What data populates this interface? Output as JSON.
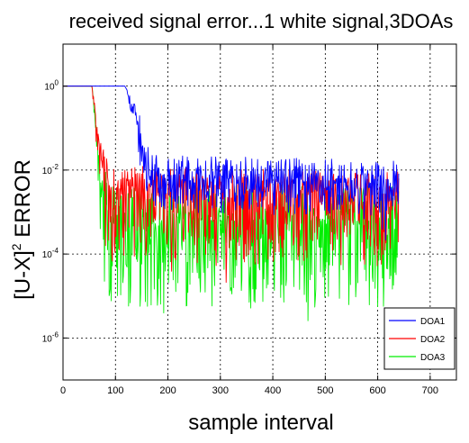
{
  "chart_data": {
    "type": "line",
    "title": "received signal error...1 white signal,3DOAs",
    "xlabel": "sample interval",
    "ylabel_main": "[U-X]",
    "ylabel_sup": "2",
    "ylabel_tail": " ERROR",
    "xlim": [
      0,
      750
    ],
    "ylim": [
      1e-07,
      10
    ],
    "yscale": "log",
    "grid": true,
    "legend_position": "bottom-right",
    "x_ticks": [
      "0",
      "100",
      "200",
      "300",
      "400",
      "500",
      "600",
      "700"
    ],
    "x_tick_values": [
      0,
      100,
      200,
      300,
      400,
      500,
      600,
      700
    ],
    "y_tick_values": [
      1,
      0.01,
      0.0001,
      1e-06
    ],
    "y_ticks": [
      {
        "base": "10",
        "exp": "0"
      },
      {
        "base": "10",
        "exp": "-2"
      },
      {
        "base": "10",
        "exp": "-4"
      },
      {
        "base": "10",
        "exp": "-6"
      }
    ],
    "n_samples": 640,
    "series": [
      {
        "name": "DOA1",
        "color": "#0000ff",
        "profile": [
          [
            0,
            1
          ],
          [
            118,
            1
          ],
          [
            140,
            0.2
          ],
          [
            160,
            0.02
          ],
          [
            175,
            0.008
          ],
          [
            640,
            0.006
          ]
        ],
        "noise_up_dec": 0.45,
        "noise_down_dec": 0.9,
        "seed": 11
      },
      {
        "name": "DOA2",
        "color": "#ff0000",
        "profile": [
          [
            0,
            1
          ],
          [
            55,
            1
          ],
          [
            65,
            0.1
          ],
          [
            75,
            0.012
          ],
          [
            90,
            0.004
          ],
          [
            640,
            0.003
          ]
        ],
        "noise_up_dec": 0.5,
        "noise_down_dec": 1.8,
        "seed": 23
      },
      {
        "name": "DOA3",
        "color": "#00ee00",
        "profile": [
          [
            0,
            1
          ],
          [
            55,
            1
          ],
          [
            65,
            0.08
          ],
          [
            75,
            0.003
          ],
          [
            90,
            0.0008
          ],
          [
            640,
            0.0008
          ]
        ],
        "noise_up_dec": 0.75,
        "noise_down_dec": 2.2,
        "seed": 37
      }
    ]
  }
}
